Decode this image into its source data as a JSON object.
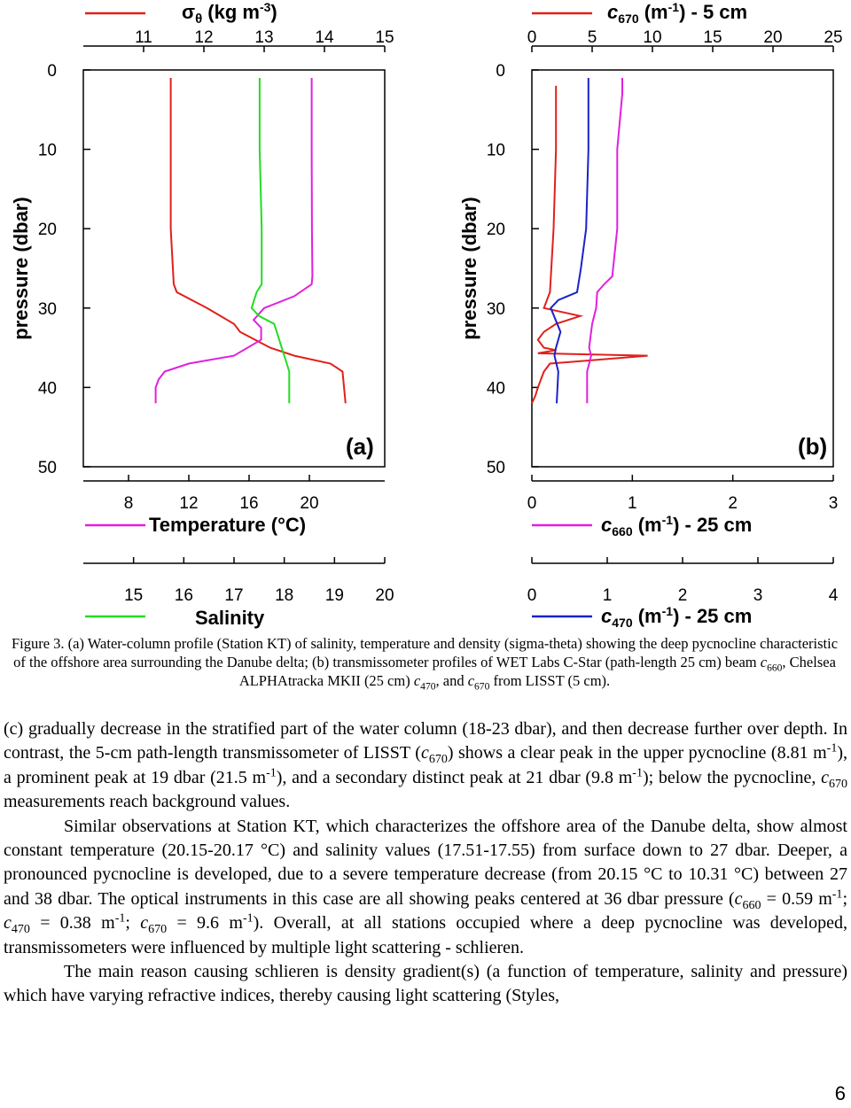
{
  "panel_a": {
    "label": "(a)",
    "y_axis_label": "pressure (dbar)",
    "y_ticks": [
      "0",
      "10",
      "20",
      "30",
      "40",
      "50"
    ],
    "density_axis": {
      "label": "σ",
      "label_sub": "θ",
      "label_rest": " (kg m",
      "label_sup": "-3",
      "label_end": ")",
      "ticks": [
        "11",
        "12",
        "13",
        "14",
        "15"
      ]
    },
    "temperature_axis": {
      "label": "Temperature (°C)",
      "ticks": [
        "8",
        "12",
        "16",
        "20"
      ]
    },
    "salinity_axis": {
      "label": "Salinity",
      "ticks": [
        "15",
        "16",
        "17",
        "18",
        "19",
        "20"
      ]
    }
  },
  "panel_b": {
    "label": "(b)",
    "y_axis_label": "pressure (dbar)",
    "y_ticks": [
      "0",
      "10",
      "20",
      "30",
      "40",
      "50"
    ],
    "c670_axis": {
      "label": "c",
      "label_sub": "670",
      "label_rest": " (m",
      "label_sup": "-1",
      "label_end": ") - 5 cm",
      "ticks": [
        "0",
        "5",
        "10",
        "15",
        "20",
        "25"
      ]
    },
    "c660_axis": {
      "label": "c",
      "label_sub": "660",
      "label_rest": " (m",
      "label_sup": "-1",
      "label_end": ") - 25 cm",
      "ticks": [
        "0",
        "1",
        "2",
        "3"
      ]
    },
    "c470_axis": {
      "label": "c",
      "label_sub": "470",
      "label_rest": " (m",
      "label_sup": "-1",
      "label_end": ") - 25 cm",
      "ticks": [
        "0",
        "1",
        "2",
        "3",
        "4"
      ]
    }
  },
  "colors": {
    "density": "#e0201a",
    "temperature": "#e020e0",
    "salinity": "#22dd22",
    "c670": "#e0201a",
    "c660": "#e020e0",
    "c470": "#1a22c8"
  },
  "chart_data": [
    {
      "type": "line",
      "panel": "(a)",
      "y_axis": "pressure (dbar)",
      "ylim": [
        0,
        50
      ],
      "y_reversed": true,
      "series": [
        {
          "name": "σθ (kg m-3)",
          "xlim": [
            10,
            15
          ],
          "x": [
            11.45,
            11.45,
            11.45,
            11.5,
            11.55,
            12.05,
            12.5,
            12.6,
            13.1,
            13.5,
            14.1,
            14.3,
            14.35
          ],
          "y": [
            1,
            10,
            20,
            27,
            28,
            30,
            32,
            33,
            35,
            36,
            37,
            38,
            42
          ]
        },
        {
          "name": "Temperature (°C)",
          "xlim": [
            5,
            25
          ],
          "x": [
            20.15,
            20.15,
            20.17,
            20.2,
            20.15,
            19.0,
            17.0,
            16.3,
            16.8,
            16.8,
            15.0,
            12.0,
            10.4,
            10.0,
            9.8,
            9.8
          ],
          "y": [
            1,
            10,
            20,
            26,
            27,
            28.5,
            30,
            31.5,
            32.5,
            34,
            36,
            37,
            38,
            39,
            40,
            42
          ]
        },
        {
          "name": "Salinity",
          "xlim": [
            14,
            20
          ],
          "x": [
            17.51,
            17.51,
            17.55,
            17.55,
            17.45,
            17.35,
            17.5,
            17.8,
            17.85,
            17.95,
            18.05,
            18.1,
            18.1
          ],
          "y": [
            1,
            10,
            20,
            27,
            28,
            30,
            31,
            32,
            33,
            35,
            37,
            38,
            42
          ]
        }
      ]
    },
    {
      "type": "line",
      "panel": "(b)",
      "y_axis": "pressure (dbar)",
      "ylim": [
        0,
        50
      ],
      "y_reversed": true,
      "series": [
        {
          "name": "c670 (m-1) - 5 cm",
          "xlim": [
            0,
            25
          ],
          "x": [
            2.0,
            2.0,
            1.8,
            1.5,
            1.0,
            4.0,
            2.0,
            1.0,
            0.5,
            1.0,
            2.0,
            0.5,
            9.6,
            1.5,
            1.0,
            0.5,
            0.3,
            0.0
          ],
          "y": [
            2,
            10,
            20,
            28,
            30,
            31,
            32,
            33,
            34,
            35,
            35.3,
            35.7,
            36,
            37,
            38,
            40,
            41,
            42
          ]
        },
        {
          "name": "c660 (m-1) - 25 cm",
          "xlim": [
            0,
            3
          ],
          "x": [
            0.9,
            0.9,
            0.85,
            0.85,
            0.8,
            0.72,
            0.65,
            0.64,
            0.6,
            0.58,
            0.57,
            0.59,
            0.55,
            0.55
          ],
          "y": [
            1,
            3,
            10,
            20,
            26,
            27,
            28,
            30,
            32,
            34,
            35,
            36,
            38,
            42
          ]
        },
        {
          "name": "c470 (m-1) - 25 cm",
          "xlim": [
            0,
            4
          ],
          "x": [
            0.75,
            0.75,
            0.72,
            0.65,
            0.6,
            0.35,
            0.25,
            0.38,
            0.32,
            0.3,
            0.35,
            0.33
          ],
          "y": [
            1,
            10,
            20,
            25,
            28,
            29,
            30,
            33,
            35,
            36,
            38,
            42
          ]
        }
      ]
    }
  ],
  "caption": {
    "part1": "Figure 3. (a) Water-column profile (Station KT) of salinity, temperature and density (sigma-theta) showing the deep pycnocline characteristic of the offshore area surrounding the Danube delta; (b) transmissometer profiles of WET Labs C-Star (path-length 25 cm) beam ",
    "c": "c",
    "sub660": "660",
    "part2": ", Chelsea ALPHAtracka MKII (25 cm) ",
    "sub470": "470",
    "part3": ", and ",
    "sub670": "670",
    "part4": " from LISST (5 cm)."
  },
  "body": {
    "p1_a": "(c) gradually decrease in the stratified part of the water column (18-23 dbar), and then decrease further over depth. In contrast, the 5-cm path-length transmissometer of LISST (",
    "p1_c": "c",
    "p1_sub1": "670",
    "p1_b": ") shows a clear peak in the upper pycnocline (8.81 m",
    "p1_sup1": "-1",
    "p1_d": "), a prominent peak at 19 dbar (21.5 m",
    "p1_sup2": "-1",
    "p1_e": "), and a secondary distinct peak at 21 dbar (9.8 m",
    "p1_sup3": "-1",
    "p1_f": "); below the pycnocline, ",
    "p1_sub2": "670",
    "p1_g": " measurements reach background values.",
    "p2_a": "Similar observations at Station KT, which characterizes the offshore area of the Danube delta, show almost constant temperature (20.15-20.17 °C) and salinity values (17.51-17.55) from surface down to 27 dbar. Deeper, a pronounced pycnocline is developed, due to a severe temperature decrease (from 20.15 °C to 10.31 °C) between 27 and 38 dbar. The optical instruments in this case are all showing peaks centered at 36 dbar pressure (",
    "p2_sub1": "660",
    "p2_b": " = 0.59 m",
    "p2_sup1": "-1",
    "p2_c": "; ",
    "p2_sub2": "470",
    "p2_d": " = 0.38 m",
    "p2_sup2": "-1",
    "p2_e": "; ",
    "p2_sub3": "670",
    "p2_f": " = 9.6 m",
    "p2_sup3": "-1",
    "p2_g": "). Overall, at all stations occupied where a deep pycnocline was developed, transmissometers were influenced by multiple light scattering - schlieren.",
    "p3": "The main reason causing schlieren is density gradient(s) (a function of temperature, salinity and pressure) which have varying refractive indices, thereby causing light scattering (Styles,"
  },
  "page_number": "6"
}
